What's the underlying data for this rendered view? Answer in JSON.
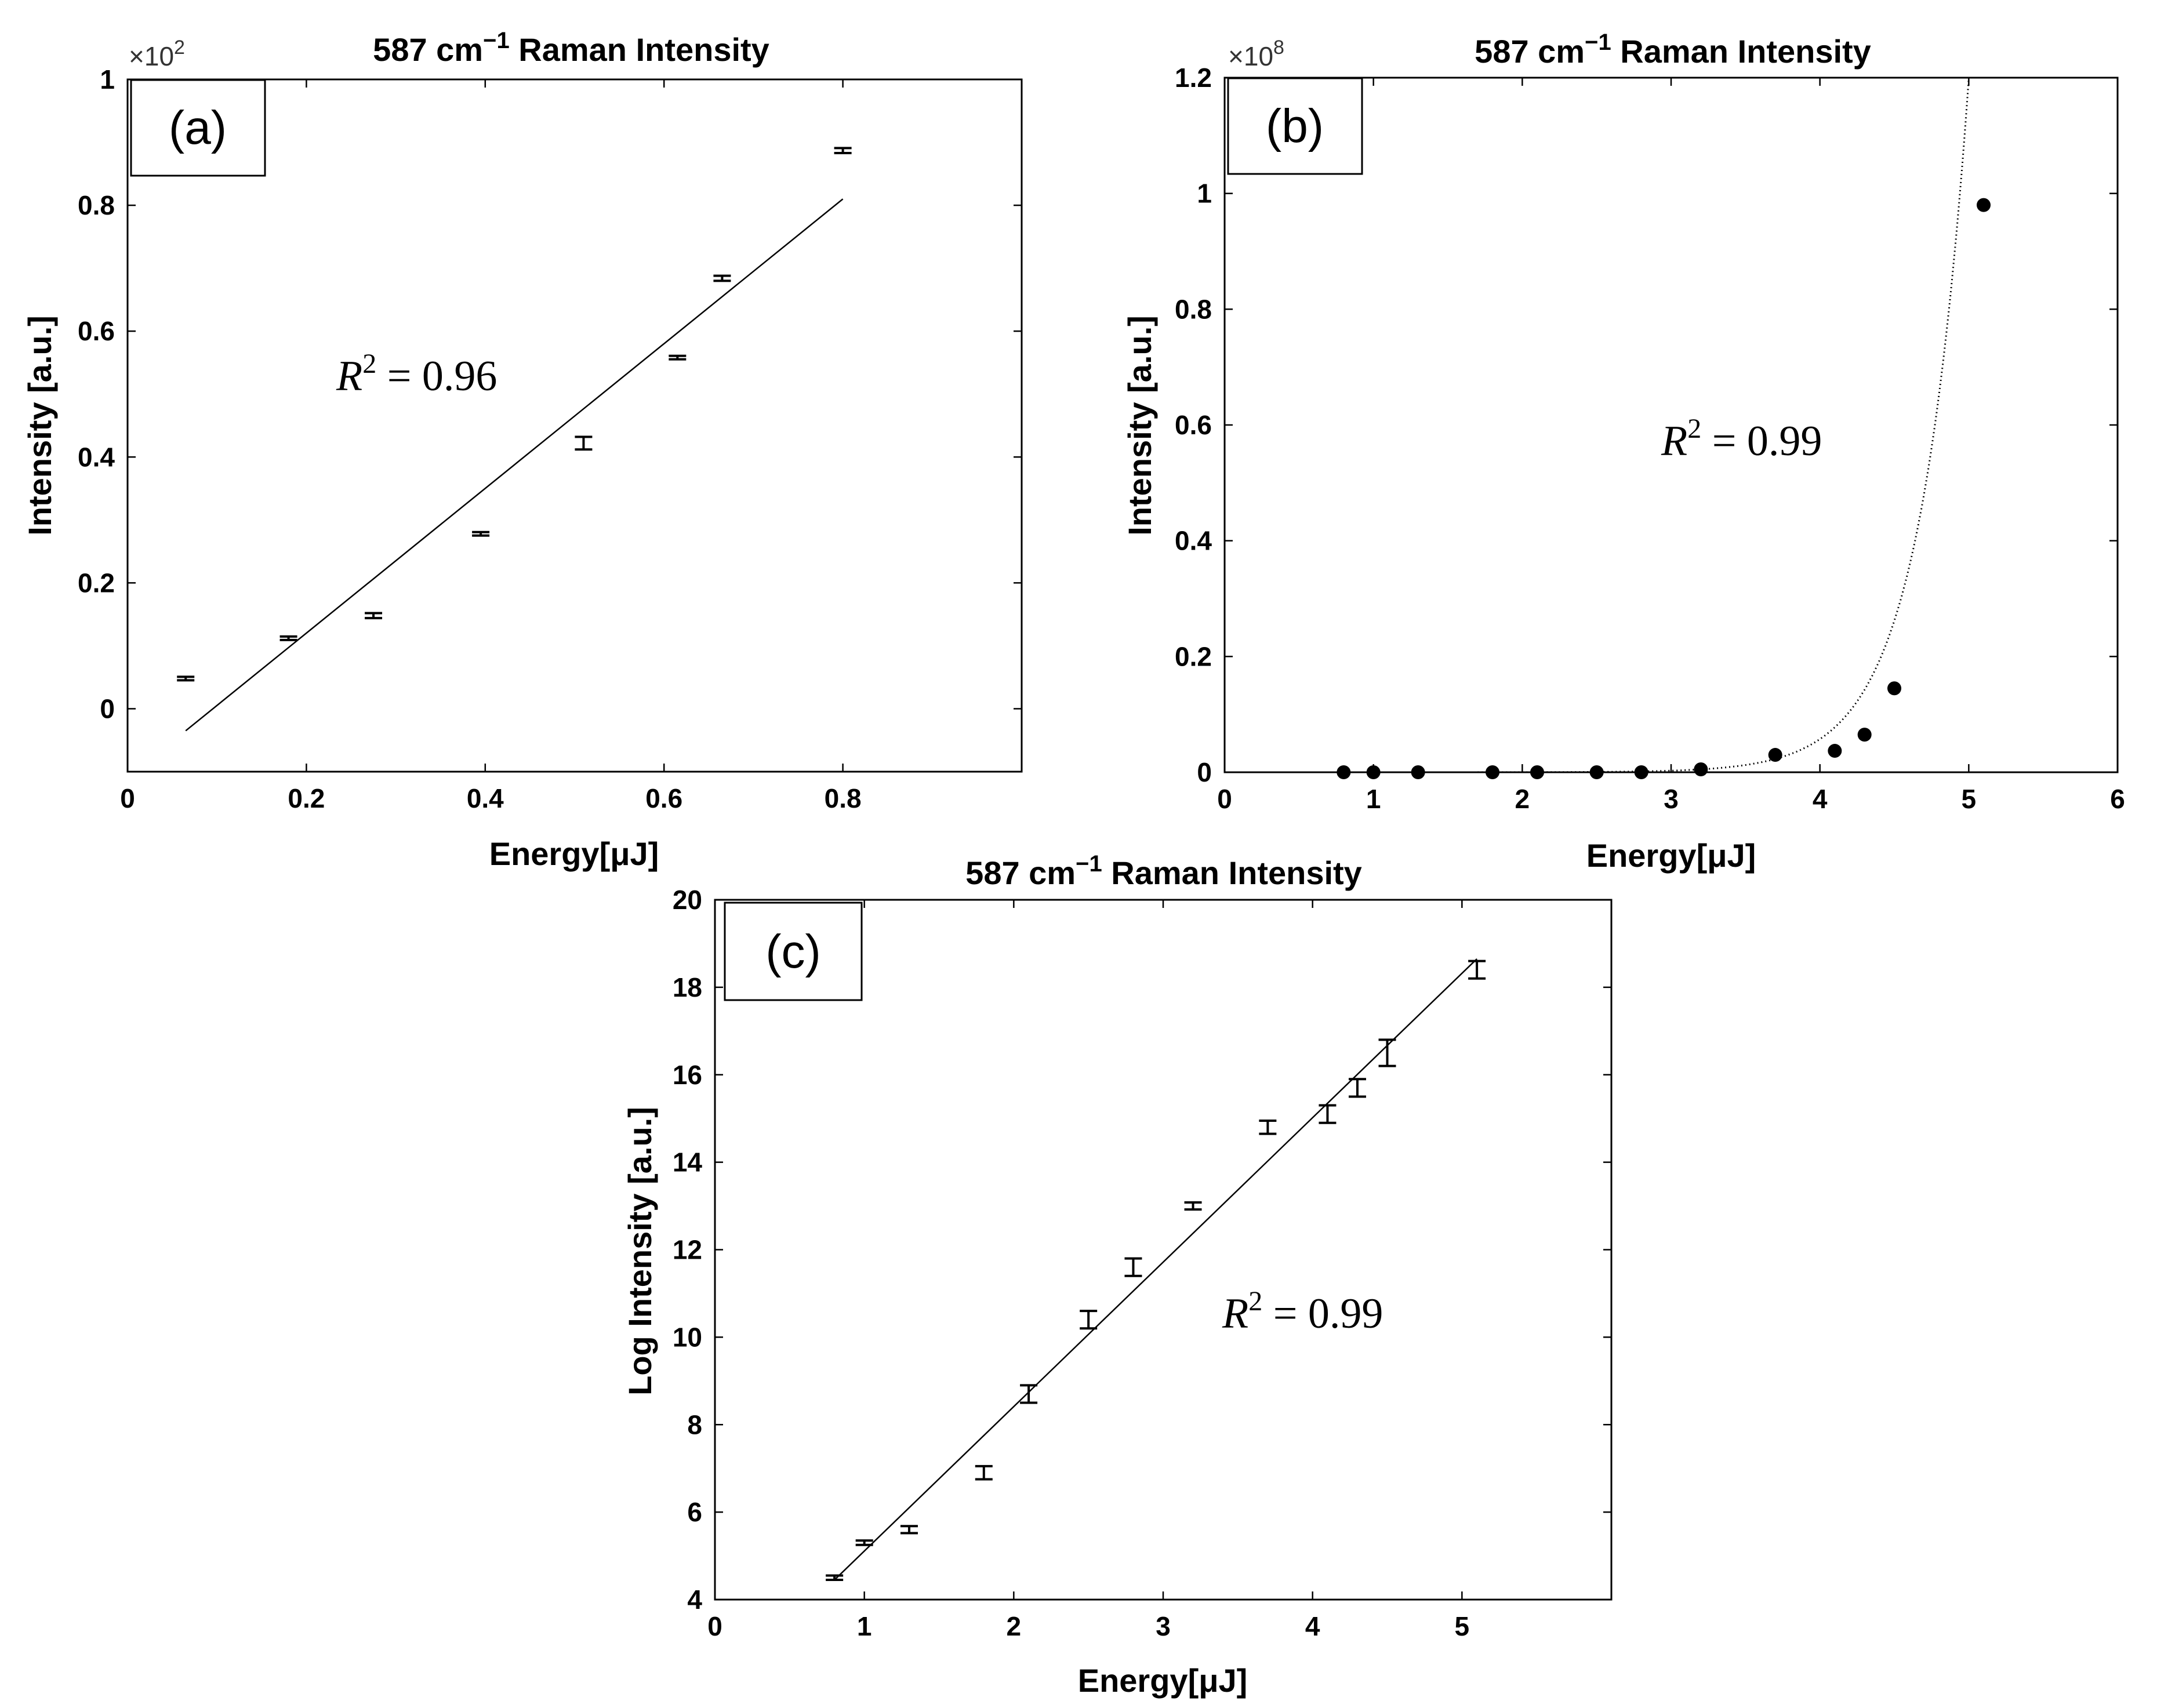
{
  "chart_data": [
    {
      "id": "a",
      "type": "scatter",
      "panel_label": "(a)",
      "title": "587 cm",
      "title_sup": "−1",
      "title_rest": " Raman Intensity",
      "xlabel": "Energy[μJ]",
      "ylabel": "Intensity [a.u.]",
      "y_multiplier": "×10",
      "y_multiplier_exp": "2",
      "r2_label": "R",
      "r2_exp": "2",
      "r2_value": " = 0.96",
      "xlim": [
        0,
        1
      ],
      "ylim": [
        -0.1,
        1
      ],
      "xticks": [
        0,
        0.2,
        0.4,
        0.6,
        0.8
      ],
      "xtick_labels": [
        "0",
        "0.2",
        "0.4",
        "0.6",
        "0.8"
      ],
      "yticks": [
        0,
        0.2,
        0.4,
        0.6,
        0.8,
        1
      ],
      "ytick_labels": [
        "0",
        "0.2",
        "0.4",
        "0.6",
        "0.8",
        "1"
      ],
      "marker": "errorbar",
      "points": [
        {
          "x": 0.065,
          "y": 0.048,
          "err": 0.002
        },
        {
          "x": 0.18,
          "y": 0.112,
          "err": 0.002
        },
        {
          "x": 0.275,
          "y": 0.148,
          "err": 0.004
        },
        {
          "x": 0.395,
          "y": 0.278,
          "err": 0.002
        },
        {
          "x": 0.51,
          "y": 0.422,
          "err": 0.01
        },
        {
          "x": 0.615,
          "y": 0.558,
          "err": 0.002
        },
        {
          "x": 0.665,
          "y": 0.684,
          "err": 0.004
        },
        {
          "x": 0.8,
          "y": 0.887,
          "err": 0.004
        }
      ],
      "fit": {
        "kind": "linear",
        "x": [
          0.065,
          0.8
        ],
        "y": [
          -0.035,
          0.81
        ]
      }
    },
    {
      "id": "b",
      "type": "scatter",
      "panel_label": "(b)",
      "title": "587 cm",
      "title_sup": "−1",
      "title_rest": " Raman Intensity",
      "xlabel": "Energy[μJ]",
      "ylabel": "Intensity [a.u.]",
      "y_multiplier": "×10",
      "y_multiplier_exp": "8",
      "r2_label": "R",
      "r2_exp": "2",
      "r2_value": " = 0.99",
      "xlim": [
        0,
        6
      ],
      "ylim": [
        0,
        1.2
      ],
      "xticks": [
        0,
        1,
        2,
        3,
        4,
        5,
        6
      ],
      "xtick_labels": [
        "0",
        "1",
        "2",
        "3",
        "4",
        "5",
        "6"
      ],
      "yticks": [
        0,
        0.2,
        0.4,
        0.6,
        0.8,
        1,
        1.2
      ],
      "ytick_labels": [
        "0",
        "0.2",
        "0.4",
        "0.6",
        "0.8",
        "1",
        "1.2"
      ],
      "marker": "dot",
      "points": [
        {
          "x": 0.8,
          "y": 0.0
        },
        {
          "x": 1.0,
          "y": 0.0
        },
        {
          "x": 1.3,
          "y": 0.0
        },
        {
          "x": 1.8,
          "y": 0.0
        },
        {
          "x": 2.1,
          "y": 0.0
        },
        {
          "x": 2.5,
          "y": 0.0
        },
        {
          "x": 2.8,
          "y": 0.0
        },
        {
          "x": 3.2,
          "y": 0.005
        },
        {
          "x": 3.7,
          "y": 0.03
        },
        {
          "x": 4.1,
          "y": 0.037
        },
        {
          "x": 4.3,
          "y": 0.065
        },
        {
          "x": 4.5,
          "y": 0.145
        },
        {
          "x": 5.1,
          "y": 0.98
        }
      ],
      "fit": {
        "kind": "exponential",
        "a": 3e-07,
        "b": 3.04,
        "x_range": [
          0.8,
          5.1
        ]
      }
    },
    {
      "id": "c",
      "type": "scatter",
      "panel_label": "(c)",
      "title": "587 cm",
      "title_sup": "−1",
      "title_rest": " Raman Intensity",
      "xlabel": "Energy[μJ]",
      "ylabel": "Log Intensity [a.u.]",
      "r2_label": "R",
      "r2_exp": "2",
      "r2_value": " = 0.99",
      "xlim": [
        0,
        6
      ],
      "ylim": [
        4,
        20
      ],
      "xticks": [
        0,
        1,
        2,
        3,
        4,
        5
      ],
      "xtick_labels": [
        "0",
        "1",
        "2",
        "3",
        "4",
        "5"
      ],
      "yticks": [
        4,
        6,
        8,
        10,
        12,
        14,
        16,
        18,
        20
      ],
      "ytick_labels": [
        "4",
        "6",
        "8",
        "10",
        "12",
        "14",
        "16",
        "18",
        "20"
      ],
      "marker": "errorbar",
      "points": [
        {
          "x": 0.8,
          "y": 4.5,
          "err": 0.05
        },
        {
          "x": 1.0,
          "y": 5.3,
          "err": 0.05
        },
        {
          "x": 1.3,
          "y": 5.6,
          "err": 0.08
        },
        {
          "x": 1.8,
          "y": 6.9,
          "err": 0.15
        },
        {
          "x": 2.1,
          "y": 8.7,
          "err": 0.2
        },
        {
          "x": 2.5,
          "y": 10.4,
          "err": 0.2
        },
        {
          "x": 2.8,
          "y": 11.6,
          "err": 0.2
        },
        {
          "x": 3.2,
          "y": 13.0,
          "err": 0.08
        },
        {
          "x": 3.7,
          "y": 14.8,
          "err": 0.15
        },
        {
          "x": 4.1,
          "y": 15.1,
          "err": 0.2
        },
        {
          "x": 4.3,
          "y": 15.7,
          "err": 0.2
        },
        {
          "x": 4.5,
          "y": 16.5,
          "err": 0.3
        },
        {
          "x": 5.1,
          "y": 18.4,
          "err": 0.2
        }
      ],
      "fit": {
        "kind": "linear",
        "x": [
          0.8,
          5.1
        ],
        "y": [
          4.45,
          18.65
        ]
      }
    }
  ]
}
